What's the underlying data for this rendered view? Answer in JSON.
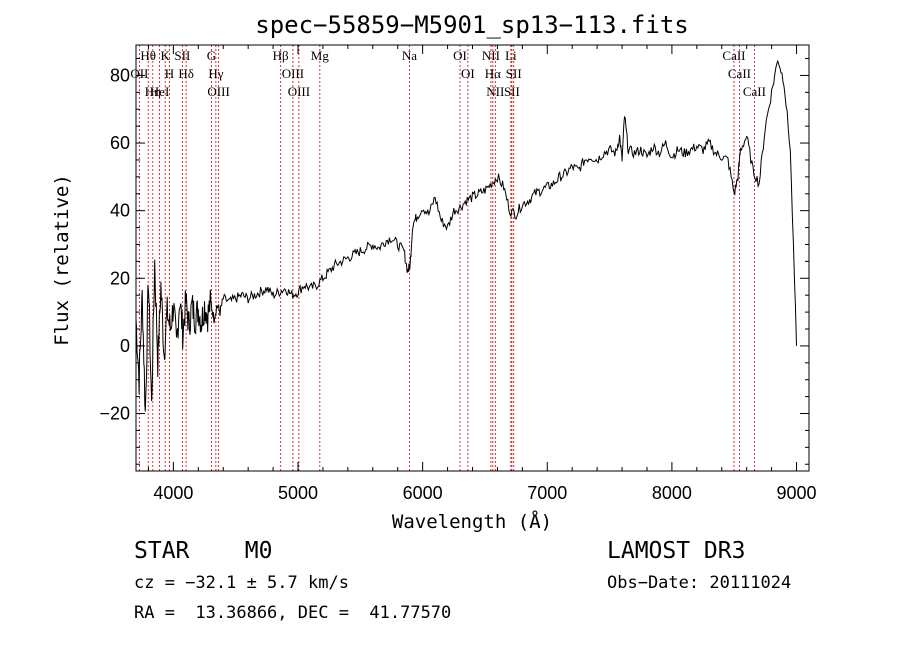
{
  "chart_data": {
    "type": "line",
    "title": "spec−55859−M5901_sp13−113.fits",
    "xlabel": "Wavelength (Å)",
    "ylabel": "Flux (relative)",
    "xlim": [
      3700,
      9100
    ],
    "ylim": [
      -37,
      89
    ],
    "xticks": [
      4000,
      5000,
      6000,
      7000,
      8000,
      9000
    ],
    "yticks": [
      -20,
      0,
      20,
      40,
      60,
      80
    ],
    "series": [
      {
        "name": "spectrum",
        "x": [
          3700,
          3725,
          3750,
          3775,
          3800,
          3825,
          3850,
          3875,
          3900,
          3925,
          3950,
          3975,
          4000,
          4025,
          4050,
          4075,
          4100,
          4125,
          4150,
          4175,
          4200,
          4225,
          4250,
          4275,
          4300,
          4325,
          4350,
          4375,
          4400,
          4450,
          4500,
          4550,
          4600,
          4650,
          4700,
          4750,
          4800,
          4850,
          4900,
          4950,
          5000,
          5050,
          5100,
          5150,
          5200,
          5250,
          5300,
          5350,
          5400,
          5450,
          5500,
          5550,
          5600,
          5650,
          5700,
          5750,
          5800,
          5850,
          5880,
          5900,
          5920,
          5950,
          6000,
          6050,
          6100,
          6150,
          6200,
          6250,
          6300,
          6350,
          6400,
          6450,
          6500,
          6550,
          6600,
          6650,
          6700,
          6750,
          6800,
          6850,
          6900,
          6950,
          7000,
          7050,
          7100,
          7150,
          7200,
          7250,
          7300,
          7350,
          7400,
          7450,
          7500,
          7550,
          7580,
          7600,
          7620,
          7650,
          7700,
          7750,
          7800,
          7850,
          7900,
          7950,
          8000,
          8050,
          8100,
          8150,
          8200,
          8250,
          8300,
          8350,
          8400,
          8450,
          8500,
          8530,
          8550,
          8600,
          8650,
          8700,
          8750,
          8800,
          8850,
          8900,
          8950,
          9000
        ],
        "y": [
          8,
          -10,
          15,
          -20,
          20,
          -18,
          25,
          -5,
          18,
          -2,
          10,
          5,
          12,
          0,
          14,
          4,
          13,
          6,
          12,
          8,
          11,
          7,
          12,
          9,
          13,
          8,
          12,
          10,
          14,
          13,
          14,
          15,
          14,
          15,
          16,
          17,
          15,
          16,
          17,
          15,
          16,
          18,
          17,
          18,
          20,
          22,
          24,
          25,
          26,
          27,
          28,
          29,
          30,
          29,
          31,
          32,
          30,
          28,
          22,
          24,
          36,
          38,
          41,
          39,
          44,
          37,
          35,
          40,
          41,
          43,
          44,
          45,
          46,
          48,
          50,
          47,
          40,
          39,
          42,
          43,
          45,
          46,
          47,
          48,
          50,
          51,
          53,
          52,
          55,
          56,
          55,
          57,
          58,
          57,
          62,
          55,
          68,
          58,
          57,
          58,
          56,
          59,
          57,
          60,
          56,
          58,
          57,
          58,
          59,
          58,
          60,
          57,
          56,
          55,
          45,
          50,
          58,
          62,
          52,
          48,
          65,
          75,
          85,
          78,
          58,
          0
        ]
      }
    ],
    "line_markers": [
      {
        "label": "Hθ",
        "wavelength": 3798
      },
      {
        "label": "OII",
        "wavelength": 3727
      },
      {
        "label": "Hη",
        "wavelength": 3835
      },
      {
        "label": "HeI",
        "wavelength": 3889
      },
      {
        "label": "K",
        "wavelength": 3934
      },
      {
        "label": "H",
        "wavelength": 3968
      },
      {
        "label": "SII",
        "wavelength": 4072
      },
      {
        "label": "Hδ",
        "wavelength": 4102
      },
      {
        "label": "G",
        "wavelength": 4305
      },
      {
        "label": "Hγ",
        "wavelength": 4341
      },
      {
        "label": "OIII",
        "wavelength": 4363
      },
      {
        "label": "Hβ",
        "wavelength": 4861
      },
      {
        "label": "OIII",
        "wavelength": 4959
      },
      {
        "label": "OIII",
        "wavelength": 5007
      },
      {
        "label": "Mg",
        "wavelength": 5175
      },
      {
        "label": "Na",
        "wavelength": 5894
      },
      {
        "label": "OI",
        "wavelength": 6300
      },
      {
        "label": "OI",
        "wavelength": 6363
      },
      {
        "label": "NII",
        "wavelength": 6548
      },
      {
        "label": "Hα",
        "wavelength": 6563
      },
      {
        "label": "NII",
        "wavelength": 6583
      },
      {
        "label": "Li",
        "wavelength": 6708
      },
      {
        "label": "SII",
        "wavelength": 6716
      },
      {
        "label": "SII",
        "wavelength": 6731
      },
      {
        "label": "CaII",
        "wavelength": 8498
      },
      {
        "label": "CaII",
        "wavelength": 8542
      },
      {
        "label": "CaII",
        "wavelength": 8662
      }
    ],
    "colors": {
      "spectrum": "#000000",
      "marker": "#cc0000",
      "axes": "#000000"
    }
  },
  "info": {
    "object_class": "STAR    M0",
    "survey": "LAMOST DR3",
    "cz": "cz = −32.1 ± 5.7 km/s",
    "obs_date": "Obs−Date: 20111024",
    "radec": "RA =  13.36866, DEC =  41.77570"
  }
}
